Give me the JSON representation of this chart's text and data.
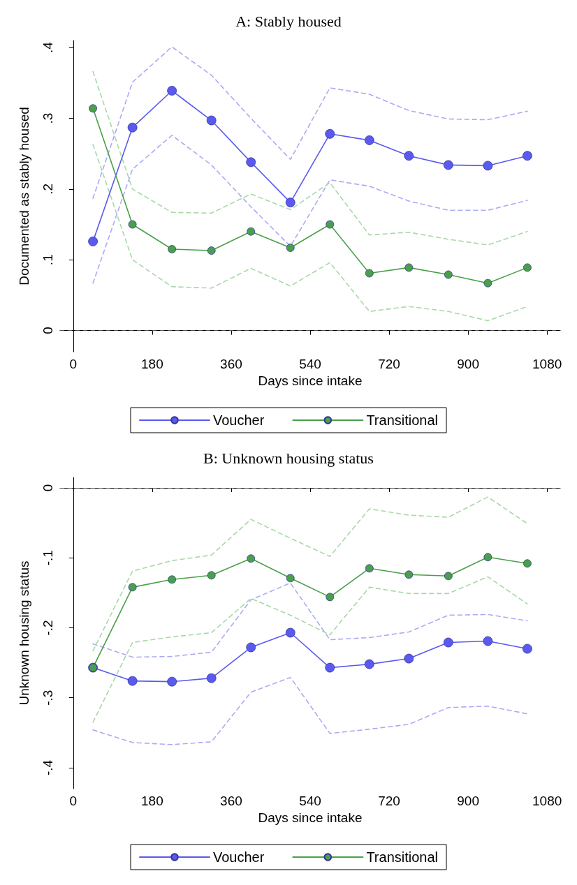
{
  "chart_data": [
    {
      "type": "line",
      "title": "A: Stably housed",
      "xlabel": "Days since intake",
      "ylabel": "Documented as stably housed",
      "x": [
        45,
        135,
        225,
        315,
        405,
        495,
        585,
        675,
        765,
        855,
        945,
        1035
      ],
      "xlim": [
        -30,
        1110
      ],
      "xticks": [
        0,
        180,
        360,
        540,
        720,
        900,
        1080
      ],
      "ylim": [
        -0.03,
        0.41
      ],
      "yticks": [
        0,
        {
          "value": 0.1,
          "label": ".1"
        },
        {
          "value": 0.2,
          "label": ".2"
        },
        {
          "value": 0.3,
          "label": ".3"
        },
        {
          "value": 0.4,
          "label": ".4"
        }
      ],
      "grid": false,
      "legend": "bottom",
      "marker": "circle",
      "line_style": "solid",
      "ref_lines": [
        {
          "axis": "y",
          "value": 0,
          "color": "#555555",
          "line_style": "dashed"
        }
      ],
      "series": [
        {
          "color": "#ababf5",
          "marker": "none",
          "line_style": "dashed",
          "values": [
            0.187,
            0.351,
            0.401,
            0.361,
            0.3,
            0.242,
            0.343,
            0.334,
            0.311,
            0.299,
            0.298,
            0.31
          ]
        },
        {
          "color": "#ababf5",
          "marker": "none",
          "line_style": "dashed",
          "values": [
            0.067,
            0.228,
            0.276,
            0.234,
            0.175,
            0.119,
            0.213,
            0.204,
            0.183,
            0.17,
            0.17,
            0.184
          ]
        },
        {
          "color": "#a8d8a8",
          "marker": "none",
          "line_style": "dashed",
          "values": [
            0.366,
            0.2,
            0.167,
            0.166,
            0.193,
            0.171,
            0.209,
            0.135,
            0.139,
            0.129,
            0.121,
            0.14
          ]
        },
        {
          "color": "#a8d8a8",
          "marker": "none",
          "line_style": "dashed",
          "values": [
            0.263,
            0.1,
            0.062,
            0.06,
            0.088,
            0.063,
            0.096,
            0.027,
            0.034,
            0.027,
            0.014,
            0.034
          ]
        },
        {
          "name": "Voucher",
          "color": "#5a5af0",
          "values": [
            0.126,
            0.287,
            0.339,
            0.297,
            0.238,
            0.181,
            0.278,
            0.269,
            0.247,
            0.234,
            0.233,
            0.247
          ]
        },
        {
          "name": "Transitional",
          "color": "#4aa04a",
          "values": [
            0.314,
            0.15,
            0.115,
            0.113,
            0.14,
            0.117,
            0.15,
            0.081,
            0.089,
            0.079,
            0.067,
            0.089
          ]
        }
      ]
    },
    {
      "type": "line",
      "title": "B: Unknown housing status",
      "xlabel": "Days since intake",
      "ylabel": "Unknown housing status",
      "x": [
        45,
        135,
        225,
        315,
        405,
        495,
        585,
        675,
        765,
        855,
        945,
        1035
      ],
      "xlim": [
        -30,
        1110
      ],
      "xticks": [
        0,
        180,
        360,
        540,
        720,
        900,
        1080
      ],
      "ylim": [
        -0.43,
        0.015
      ],
      "yticks": [
        {
          "value": -0.4,
          "label": "-.4"
        },
        {
          "value": -0.3,
          "label": "-.3"
        },
        {
          "value": -0.2,
          "label": "-.2"
        },
        {
          "value": -0.1,
          "label": "-.1"
        },
        0
      ],
      "grid": false,
      "legend": "bottom",
      "marker": "circle",
      "line_style": "solid",
      "ref_lines": [
        {
          "axis": "y",
          "value": 0,
          "color": "#555555",
          "line_style": "dashed"
        }
      ],
      "series": [
        {
          "color": "#ababf5",
          "marker": "none",
          "line_style": "dashed",
          "values": [
            -0.223,
            -0.242,
            -0.241,
            -0.235,
            -0.16,
            -0.136,
            -0.217,
            -0.214,
            -0.206,
            -0.182,
            -0.181,
            -0.19
          ]
        },
        {
          "color": "#ababf5",
          "marker": "none",
          "line_style": "dashed",
          "values": [
            -0.346,
            -0.364,
            -0.367,
            -0.363,
            -0.292,
            -0.271,
            -0.351,
            -0.345,
            -0.338,
            -0.314,
            -0.312,
            -0.323
          ]
        },
        {
          "color": "#a8d8a8",
          "marker": "none",
          "line_style": "dashed",
          "values": [
            -0.233,
            -0.119,
            -0.104,
            -0.096,
            -0.045,
            -0.072,
            -0.098,
            -0.03,
            -0.039,
            -0.042,
            -0.013,
            -0.051
          ]
        },
        {
          "color": "#a8d8a8",
          "marker": "none",
          "line_style": "dashed",
          "values": [
            -0.335,
            -0.221,
            -0.213,
            -0.207,
            -0.158,
            -0.182,
            -0.21,
            -0.142,
            -0.151,
            -0.151,
            -0.127,
            -0.166
          ]
        },
        {
          "name": "Voucher",
          "color": "#5a5af0",
          "values": [
            -0.257,
            -0.276,
            -0.277,
            -0.272,
            -0.228,
            -0.207,
            -0.257,
            -0.252,
            -0.244,
            -0.221,
            -0.219,
            -0.23
          ]
        },
        {
          "name": "Transitional",
          "color": "#4aa04a",
          "values": [
            -0.257,
            -0.142,
            -0.131,
            -0.125,
            -0.101,
            -0.129,
            -0.156,
            -0.115,
            -0.124,
            -0.126,
            -0.099,
            -0.108
          ]
        }
      ]
    }
  ]
}
